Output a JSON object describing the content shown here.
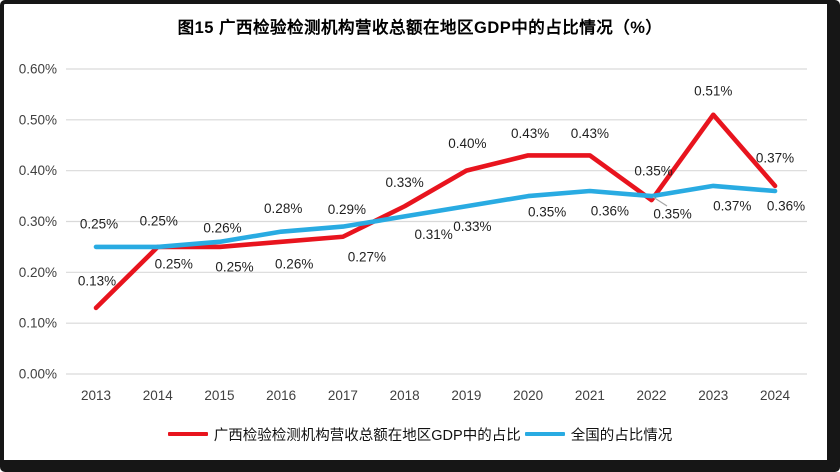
{
  "chart_data": {
    "type": "line",
    "title": "图15 广西检验检测机构营收总额在地区GDP中的占比情况（%）",
    "categories": [
      "2013",
      "2014",
      "2015",
      "2016",
      "2017",
      "2018",
      "2019",
      "2020",
      "2021",
      "2022",
      "2023",
      "2024"
    ],
    "series": [
      {
        "name": "广西检验检测机构营收总额在地区GDP中的占比",
        "color": "#e8141e",
        "values": [
          0.13,
          0.25,
          0.25,
          0.26,
          0.27,
          0.33,
          0.4,
          0.43,
          0.43,
          0.35,
          0.51,
          0.37
        ],
        "labels": [
          "0.13%",
          "0.25%",
          "0.25%",
          "0.26%",
          "0.27%",
          "0.33%",
          "0.40%",
          "0.43%",
          "0.43%",
          "0.35%",
          "0.51%",
          "0.37%"
        ]
      },
      {
        "name": "全国的占比情况",
        "color": "#29abe2",
        "values": [
          0.25,
          0.25,
          0.26,
          0.28,
          0.29,
          0.31,
          0.33,
          0.35,
          0.36,
          0.35,
          0.37,
          0.36
        ],
        "labels": [
          "0.25%",
          "0.25%",
          "0.26%",
          "0.28%",
          "0.29%",
          "0.31%",
          "0.33%",
          "0.35%",
          "0.36%",
          "0.35%",
          "0.37%",
          "0.36%"
        ]
      }
    ],
    "ylim": [
      0,
      0.6
    ],
    "ytick_labels": [
      "0.00%",
      "0.10%",
      "0.20%",
      "0.30%",
      "0.40%",
      "0.50%",
      "0.60%"
    ],
    "grid": "horizontal",
    "legend_position": "bottom"
  },
  "colors": {
    "gridline": "#d9d9d9",
    "axis_text": "#404040",
    "label_text": "#1f1f1f",
    "leader_line": "#a6a6a6",
    "frame": "#161616",
    "background": "#ffffff"
  }
}
